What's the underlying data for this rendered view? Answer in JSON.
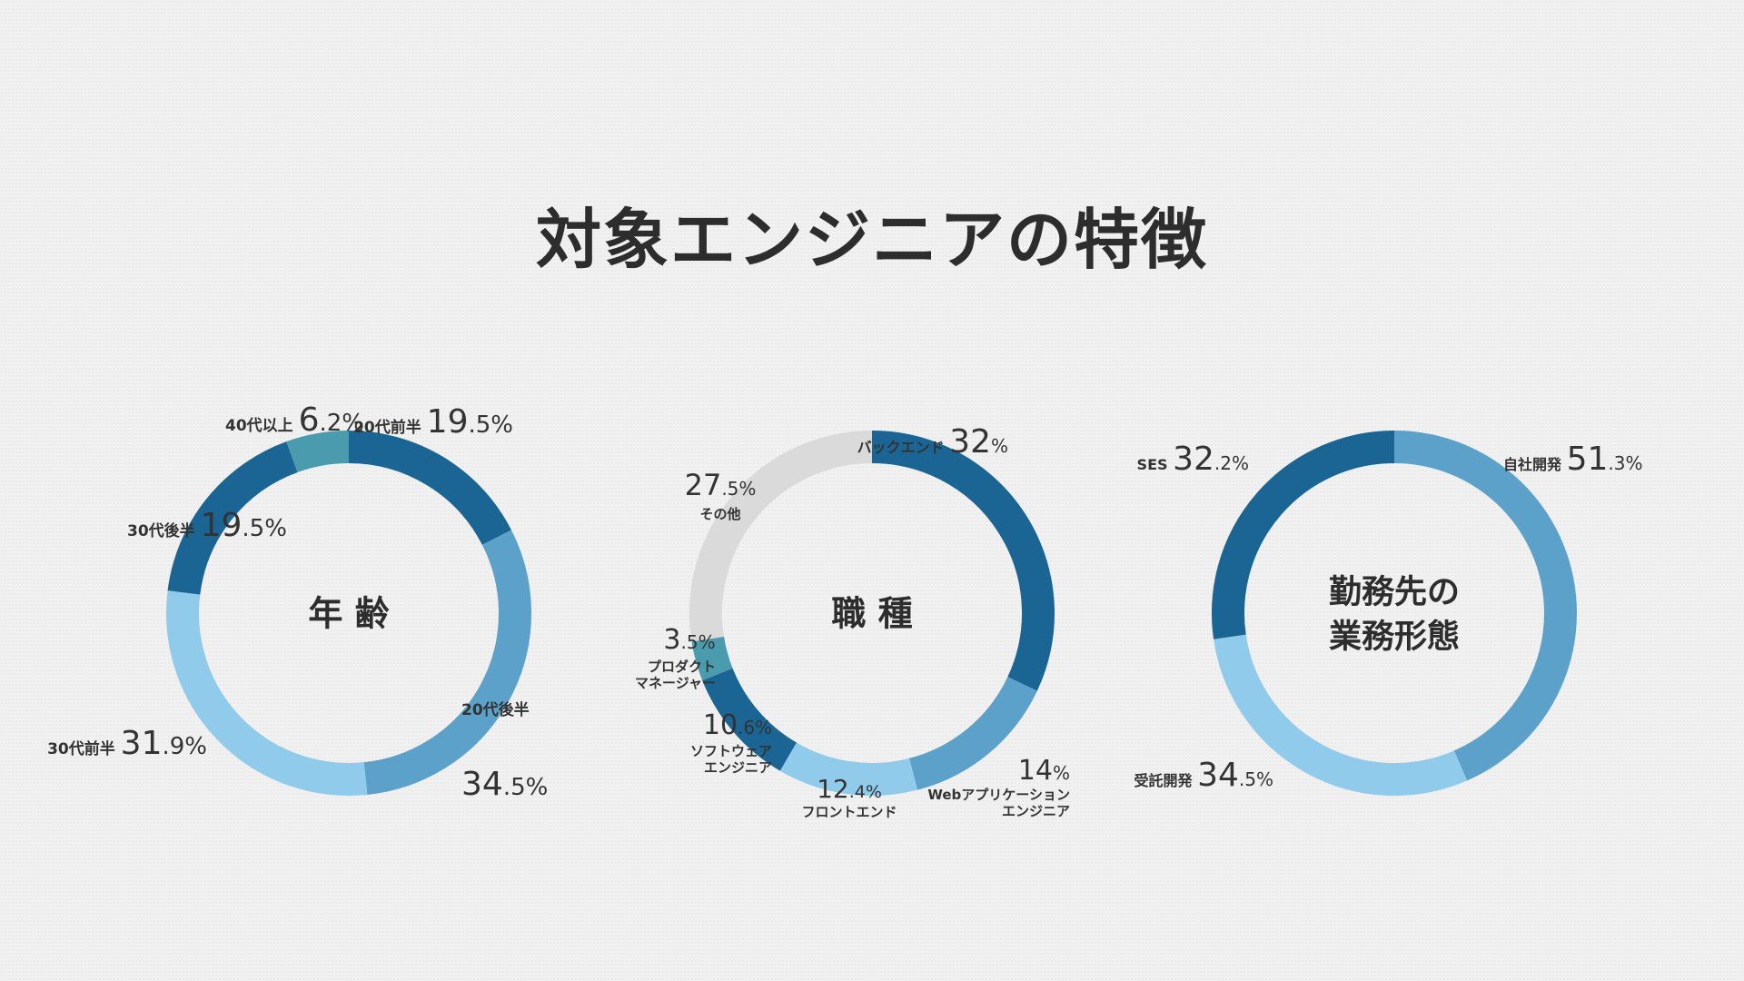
{
  "page": {
    "title": "対象エンジニアの特徴"
  },
  "colors": {
    "dark_blue": "#1a6593",
    "mid_blue": "#5ca1c9",
    "light_blue": "#91cbec",
    "teal": "#4a9bae",
    "gray": "#dadada",
    "text": "#333333"
  },
  "chart_data": [
    {
      "type": "pie",
      "title": "年 齢",
      "slices": [
        {
          "name": "20代前半",
          "value": 19.5,
          "int": "19",
          "dec": ".5%",
          "color": "#1a6593"
        },
        {
          "name": "20代後半",
          "value": 34.5,
          "int": "34",
          "dec": ".5%",
          "color": "#5ca1c9"
        },
        {
          "name": "30代前半",
          "value": 31.9,
          "int": "31",
          "dec": ".9%",
          "color": "#91cbec"
        },
        {
          "name": "30代後半",
          "value": 19.5,
          "int": "19",
          "dec": ".5%",
          "color": "#1a6593"
        },
        {
          "name": "40代以上",
          "value": 6.2,
          "int": "6",
          "dec": ".2%",
          "color": "#4a9bae"
        }
      ]
    },
    {
      "type": "pie",
      "title": "職 種",
      "slices": [
        {
          "name": "バックエンド",
          "value": 32,
          "int": "32",
          "dec": "%",
          "color": "#1a6593"
        },
        {
          "name": "Webアプリケーション\nエンジニア",
          "value": 14,
          "int": "14",
          "dec": "%",
          "color": "#5ca1c9"
        },
        {
          "name": "フロントエンド",
          "value": 12.4,
          "int": "12",
          "dec": ".4%",
          "color": "#91cbec"
        },
        {
          "name": "ソフトウェア\nエンジニア",
          "value": 10.6,
          "int": "10",
          "dec": ".6%",
          "color": "#1a6593"
        },
        {
          "name": "プロダクト\nマネージャー",
          "value": 3.5,
          "int": "3",
          "dec": ".5%",
          "color": "#4a9bae"
        },
        {
          "name": "その他",
          "value": 27.5,
          "int": "27",
          "dec": ".5%",
          "color": "#dadada"
        }
      ]
    },
    {
      "type": "pie",
      "title": "勤務先の\n業務形態",
      "slices": [
        {
          "name": "自社開発",
          "value": 51.3,
          "int": "51",
          "dec": ".3%",
          "color": "#5ca1c9"
        },
        {
          "name": "受託開発",
          "value": 34.5,
          "int": "34",
          "dec": ".5%",
          "color": "#91cbec"
        },
        {
          "name": "SES",
          "value": 32.2,
          "int": "32",
          "dec": ".2%",
          "color": "#1a6593"
        }
      ]
    }
  ]
}
